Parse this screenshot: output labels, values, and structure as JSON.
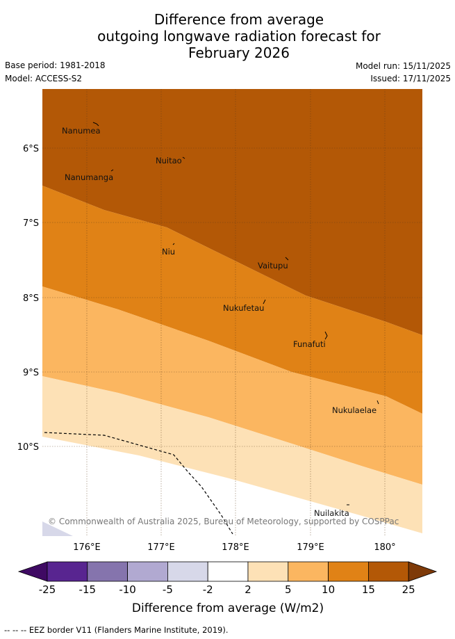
{
  "title": {
    "line1": "Difference from average",
    "line2": "outgoing longwave radiation forecast for",
    "line3": "February 2026"
  },
  "meta": {
    "base_period": "Base period: 1981-2018",
    "model": "Model: ACCESS-S2",
    "model_run": "Model run: 15/11/2025",
    "issued": "Issued: 17/11/2025"
  },
  "map": {
    "lat_labels": [
      "6°S",
      "7°S",
      "8°S",
      "9°S",
      "10°S"
    ],
    "lon_labels": [
      "176°E",
      "177°E",
      "178°E",
      "179°E",
      "180°"
    ],
    "islands": [
      "Nanumea",
      "Nuitao",
      "Nanumanga",
      "Niu",
      "Vaitupu",
      "Nukufetau",
      "Funafuti",
      "Nukulaelae",
      "Nuilakita"
    ],
    "copyright": "© Commonwealth of Australia 2025, Bureau of Meteorology, supported by COSPPac"
  },
  "colorbar": {
    "ticks": [
      "-25",
      "-15",
      "-10",
      "-5",
      "-2",
      "2",
      "5",
      "10",
      "15",
      "25"
    ],
    "colors": [
      "#3f0a63",
      "#582590",
      "#8574ad",
      "#b1a9d1",
      "#d7d8e9",
      "#ffffff",
      "#fde1b6",
      "#fbb660",
      "#e08216",
      "#b35806",
      "#7e3a08"
    ],
    "label": "Difference from average (W/m2)"
  },
  "footnote": "--  --  -- EEZ border V11 (Flanders Marine Institute, 2019)."
}
